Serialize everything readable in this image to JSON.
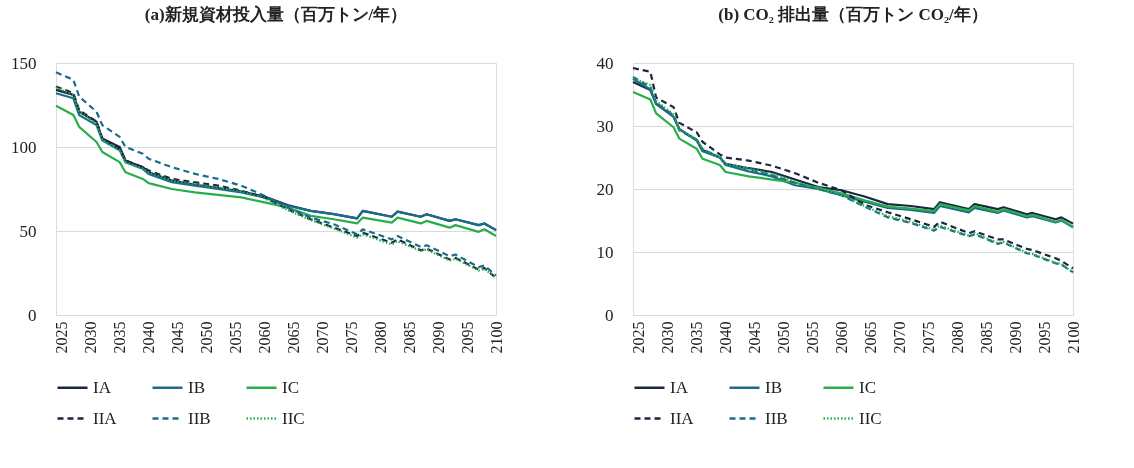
{
  "chart_data": [
    {
      "type": "line",
      "title": "(a)新規資材投入量（百万トン/年）",
      "x": [
        2024,
        2027,
        2028,
        2031,
        2032,
        2035,
        2036,
        2039,
        2040,
        2044,
        2048,
        2052,
        2056,
        2060,
        2064,
        2068,
        2072,
        2076,
        2077,
        2082,
        2083,
        2087,
        2088,
        2092,
        2093,
        2097,
        2098,
        2100
      ],
      "xlim": [
        2024,
        2100
      ],
      "xticks": [
        2025,
        2030,
        2035,
        2040,
        2045,
        2050,
        2055,
        2060,
        2065,
        2070,
        2075,
        2080,
        2085,
        2090,
        2095,
        2100
      ],
      "ylim": [
        0,
        150
      ],
      "yticks": [
        0,
        50,
        100,
        150
      ],
      "grid": "y",
      "legend": "bottom",
      "series": [
        {
          "name": "IA",
          "color": "#1c2541",
          "line_style": "solid",
          "values": [
            134,
            131,
            121,
            115,
            105,
            100,
            92,
            88,
            85,
            80,
            77.5,
            75.5,
            73.5,
            70.5,
            65.5,
            62,
            60,
            57.5,
            62,
            58.5,
            61.5,
            58.5,
            60,
            56,
            57,
            53.5,
            54.5,
            50.5
          ]
        },
        {
          "name": "IB",
          "color": "#1a6b8c",
          "line_style": "solid",
          "values": [
            132,
            129,
            119,
            113,
            104,
            98,
            91,
            87,
            84,
            79,
            77,
            75,
            73,
            70,
            65,
            62,
            60,
            57.5,
            62,
            58.5,
            61.5,
            58.5,
            60,
            56,
            57,
            53.5,
            54.5,
            50.5
          ]
        },
        {
          "name": "IC",
          "color": "#27ae4b",
          "line_style": "solid",
          "values": [
            124.5,
            119,
            112,
            103,
            97,
            91,
            85,
            81,
            78.5,
            75,
            73,
            71.5,
            70,
            67,
            64,
            59,
            57,
            54.5,
            58,
            55,
            58,
            54.5,
            56,
            52,
            53.5,
            49.5,
            51,
            47
          ]
        },
        {
          "name": "IIA",
          "color": "#1c2541",
          "line_style": "dashed",
          "values": [
            136,
            132,
            122,
            115,
            105,
            99,
            92,
            88,
            86,
            81,
            79,
            77,
            74,
            70,
            63,
            57,
            52,
            47,
            49,
            43,
            45,
            38.5,
            39.5,
            33,
            34,
            27,
            28,
            22
          ]
        },
        {
          "name": "IIB",
          "color": "#1a6b8c",
          "line_style": "dashed",
          "values": [
            144.5,
            140,
            130,
            121,
            113,
            106,
            100,
            96,
            93,
            88,
            84,
            81,
            77,
            71,
            64,
            58,
            54,
            48,
            51,
            45,
            47,
            40.5,
            41.5,
            35,
            36,
            28.5,
            29.5,
            23.5
          ]
        },
        {
          "name": "IIC",
          "color": "#27ae4b",
          "line_style": "dotted",
          "values": [
            135.5,
            131,
            121,
            114,
            104,
            98,
            91,
            87,
            85,
            80,
            78,
            76,
            73.5,
            69.5,
            62.5,
            56.5,
            51.5,
            46,
            48,
            42,
            44,
            38,
            39,
            32.5,
            33.5,
            26.5,
            27.5,
            22
          ]
        }
      ]
    },
    {
      "type": "line",
      "title": "(b) CO₂ 排出量（百万トン CO₂/年）",
      "x": [
        2024,
        2027,
        2028,
        2031,
        2032,
        2035,
        2036,
        2039,
        2040,
        2044,
        2048,
        2052,
        2056,
        2060,
        2064,
        2068,
        2072,
        2076,
        2077,
        2082,
        2083,
        2087,
        2088,
        2092,
        2093,
        2097,
        2098,
        2100
      ],
      "xlim": [
        2024,
        2100
      ],
      "xticks": [
        2025,
        2030,
        2035,
        2040,
        2045,
        2050,
        2055,
        2060,
        2065,
        2070,
        2075,
        2080,
        2085,
        2090,
        2095,
        2100
      ],
      "ylim": [
        0,
        40
      ],
      "yticks": [
        0,
        10,
        20,
        30,
        40
      ],
      "grid": "y",
      "legend": "bottom",
      "series": [
        {
          "name": "IA",
          "color": "#1c2541",
          "line_style": "solid",
          "values": [
            37,
            35.7,
            33.5,
            31.5,
            29.5,
            27.8,
            26.2,
            25,
            24,
            23.3,
            22.7,
            21.5,
            20.3,
            19.8,
            18.8,
            17.6,
            17.3,
            16.8,
            17.9,
            16.8,
            17.6,
            16.8,
            17.1,
            16,
            16.2,
            15.2,
            15.5,
            14.5
          ]
        },
        {
          "name": "IB",
          "color": "#1a6b8c",
          "line_style": "solid",
          "values": [
            37.5,
            35.8,
            33.5,
            31.5,
            29.5,
            27.7,
            26,
            25,
            23.8,
            22.8,
            22,
            20.6,
            20,
            19,
            18,
            17,
            16.7,
            16.2,
            17.3,
            16.3,
            17,
            16.2,
            16.6,
            15.5,
            15.7,
            14.7,
            15,
            13.9
          ]
        },
        {
          "name": "IC",
          "color": "#27ae4b",
          "line_style": "solid",
          "values": [
            35.4,
            34.2,
            32,
            29.8,
            28,
            26.4,
            24.8,
            23.8,
            22.7,
            22,
            21.5,
            21,
            20.2,
            19.3,
            18.2,
            17.2,
            16.9,
            16.5,
            17.6,
            16.6,
            17.3,
            16.4,
            16.8,
            15.7,
            15.9,
            14.8,
            15.1,
            14
          ]
        },
        {
          "name": "IIA",
          "color": "#1c2541",
          "line_style": "dashed",
          "values": [
            39.2,
            38.6,
            34.5,
            33,
            30.5,
            29,
            27.5,
            25.5,
            25,
            24.5,
            23.7,
            22.5,
            21,
            19.8,
            17.5,
            16.3,
            15.2,
            14,
            14.8,
            13,
            13.3,
            12,
            12,
            10.5,
            10.3,
            9,
            8.6,
            7.4
          ]
        },
        {
          "name": "IIB",
          "color": "#1a6b8c",
          "line_style": "dashed",
          "values": [
            37.8,
            36.2,
            33.7,
            31.7,
            29.3,
            27.8,
            26.3,
            25,
            24,
            23.2,
            22.2,
            21,
            20,
            19,
            17.2,
            15.5,
            14.6,
            13.4,
            14,
            12.5,
            12.8,
            11.3,
            11.5,
            9.8,
            9.6,
            8.2,
            8,
            6.8
          ]
        },
        {
          "name": "IIC",
          "color": "#27ae4b",
          "line_style": "dotted",
          "values": [
            37.6,
            36.5,
            34,
            31.8,
            29.4,
            27.9,
            26.4,
            25,
            24,
            23.3,
            22.4,
            21.2,
            20.1,
            19.1,
            17.3,
            15.7,
            14.8,
            13.5,
            14.2,
            12.6,
            13,
            11.4,
            11.6,
            9.9,
            9.7,
            8.3,
            8.1,
            6.7
          ]
        }
      ]
    }
  ]
}
